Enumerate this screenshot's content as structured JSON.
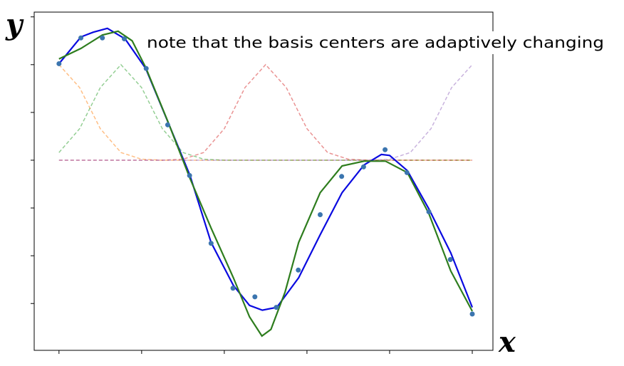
{
  "chart_data": {
    "type": "line",
    "xlabel": "x",
    "ylabel": "y",
    "annotation": "note that the basis centers are adaptively changing",
    "xlim": [
      -0.06,
      1.05
    ],
    "ylim": [
      -1.99,
      1.55
    ],
    "xticks": [
      0,
      0.2,
      0.4,
      0.6,
      0.8,
      1.0
    ],
    "yticks": [
      -1.5,
      -1.0,
      -0.5,
      0,
      0.5,
      1.0,
      1.5
    ],
    "series": [
      {
        "type": "line",
        "dashed": true,
        "color": "#ff7f0e",
        "opacity": 0.5,
        "x": [
          0,
          0.05,
          0.1,
          0.15,
          0.2,
          0.25,
          0.3,
          0.35,
          0.4,
          0.45,
          0.5,
          0.55,
          0.6,
          0.65,
          0.7,
          0.75,
          0.8,
          0.85,
          0.9,
          0.95,
          1.0
        ],
        "values": [
          1,
          0.76,
          0.33,
          0.08,
          0.01,
          0,
          0,
          0,
          0,
          0,
          0,
          0,
          0,
          0,
          0,
          0,
          0,
          0,
          0,
          0,
          0
        ]
      },
      {
        "type": "line",
        "dashed": true,
        "color": "#2ca02c",
        "opacity": 0.5,
        "x": [
          0,
          0.05,
          0.1,
          0.15,
          0.2,
          0.25,
          0.3,
          0.35,
          0.4,
          0.45,
          0.5,
          0.55,
          0.6,
          0.65,
          0.7,
          0.75,
          0.8,
          0.85,
          0.9,
          0.95,
          1.0
        ],
        "values": [
          0.08,
          0.33,
          0.76,
          1,
          0.76,
          0.33,
          0.08,
          0.01,
          0,
          0,
          0,
          0,
          0,
          0,
          0,
          0,
          0,
          0,
          0,
          0,
          0
        ]
      },
      {
        "type": "line",
        "dashed": true,
        "color": "#d62728",
        "opacity": 0.5,
        "x": [
          0,
          0.05,
          0.1,
          0.15,
          0.2,
          0.25,
          0.3,
          0.35,
          0.4,
          0.45,
          0.5,
          0.55,
          0.6,
          0.65,
          0.7,
          0.75,
          0.8,
          0.85,
          0.9,
          0.95,
          1.0
        ],
        "values": [
          0,
          0,
          0,
          0,
          0,
          0,
          0.01,
          0.08,
          0.33,
          0.76,
          1,
          0.76,
          0.33,
          0.08,
          0.01,
          0,
          0,
          0,
          0,
          0,
          0
        ]
      },
      {
        "type": "line",
        "dashed": true,
        "color": "#9467bd",
        "opacity": 0.5,
        "x": [
          0,
          0.05,
          0.1,
          0.15,
          0.2,
          0.25,
          0.3,
          0.35,
          0.4,
          0.45,
          0.5,
          0.55,
          0.6,
          0.65,
          0.7,
          0.75,
          0.8,
          0.85,
          0.9,
          0.95,
          1.0
        ],
        "values": [
          0,
          0,
          0,
          0,
          0,
          0,
          0,
          0,
          0,
          0,
          0,
          0,
          0,
          0,
          0,
          0,
          0.01,
          0.08,
          0.33,
          0.76,
          1
        ]
      },
      {
        "type": "line",
        "dashed": false,
        "color": "#0a0ae0",
        "opacity": 1,
        "x": [
          0,
          0.053,
          0.083,
          0.117,
          0.16,
          0.21,
          0.281,
          0.317,
          0.368,
          0.422,
          0.461,
          0.492,
          0.527,
          0.58,
          0.632,
          0.685,
          0.738,
          0.78,
          0.8,
          0.843,
          0.895,
          0.948,
          1.0
        ],
        "values": [
          1.01,
          1.29,
          1.34,
          1.38,
          1.27,
          0.96,
          0.22,
          -0.16,
          -0.86,
          -1.31,
          -1.52,
          -1.57,
          -1.54,
          -1.23,
          -0.78,
          -0.34,
          -0.05,
          0.06,
          0.05,
          -0.11,
          -0.51,
          -0.97,
          -1.54
        ]
      },
      {
        "type": "line",
        "dashed": false,
        "color": "#2e7d1e",
        "opacity": 1,
        "x": [
          0,
          0.053,
          0.105,
          0.143,
          0.177,
          0.21,
          0.263,
          0.317,
          0.368,
          0.422,
          0.461,
          0.491,
          0.513,
          0.547,
          0.58,
          0.632,
          0.685,
          0.738,
          0.79,
          0.843,
          0.895,
          0.948,
          1.0
        ],
        "values": [
          1.06,
          1.17,
          1.31,
          1.35,
          1.25,
          0.97,
          0.41,
          -0.19,
          -0.71,
          -1.23,
          -1.64,
          -1.84,
          -1.77,
          -1.38,
          -0.86,
          -0.34,
          -0.06,
          -0.01,
          -0.01,
          -0.13,
          -0.56,
          -1.16,
          -1.58
        ]
      },
      {
        "type": "scatter",
        "color": "#3b75af",
        "opacity": 1,
        "x": [
          0,
          0.053,
          0.105,
          0.158,
          0.211,
          0.263,
          0.316,
          0.368,
          0.421,
          0.474,
          0.526,
          0.579,
          0.632,
          0.684,
          0.737,
          0.789,
          0.842,
          0.895,
          0.947,
          1.0
        ],
        "values": [
          1.01,
          1.28,
          1.28,
          1.27,
          0.96,
          0.37,
          -0.16,
          -0.87,
          -1.34,
          -1.43,
          -1.54,
          -1.15,
          -0.57,
          -0.17,
          -0.07,
          0.11,
          -0.13,
          -0.54,
          -1.04,
          -1.61
        ]
      }
    ]
  }
}
